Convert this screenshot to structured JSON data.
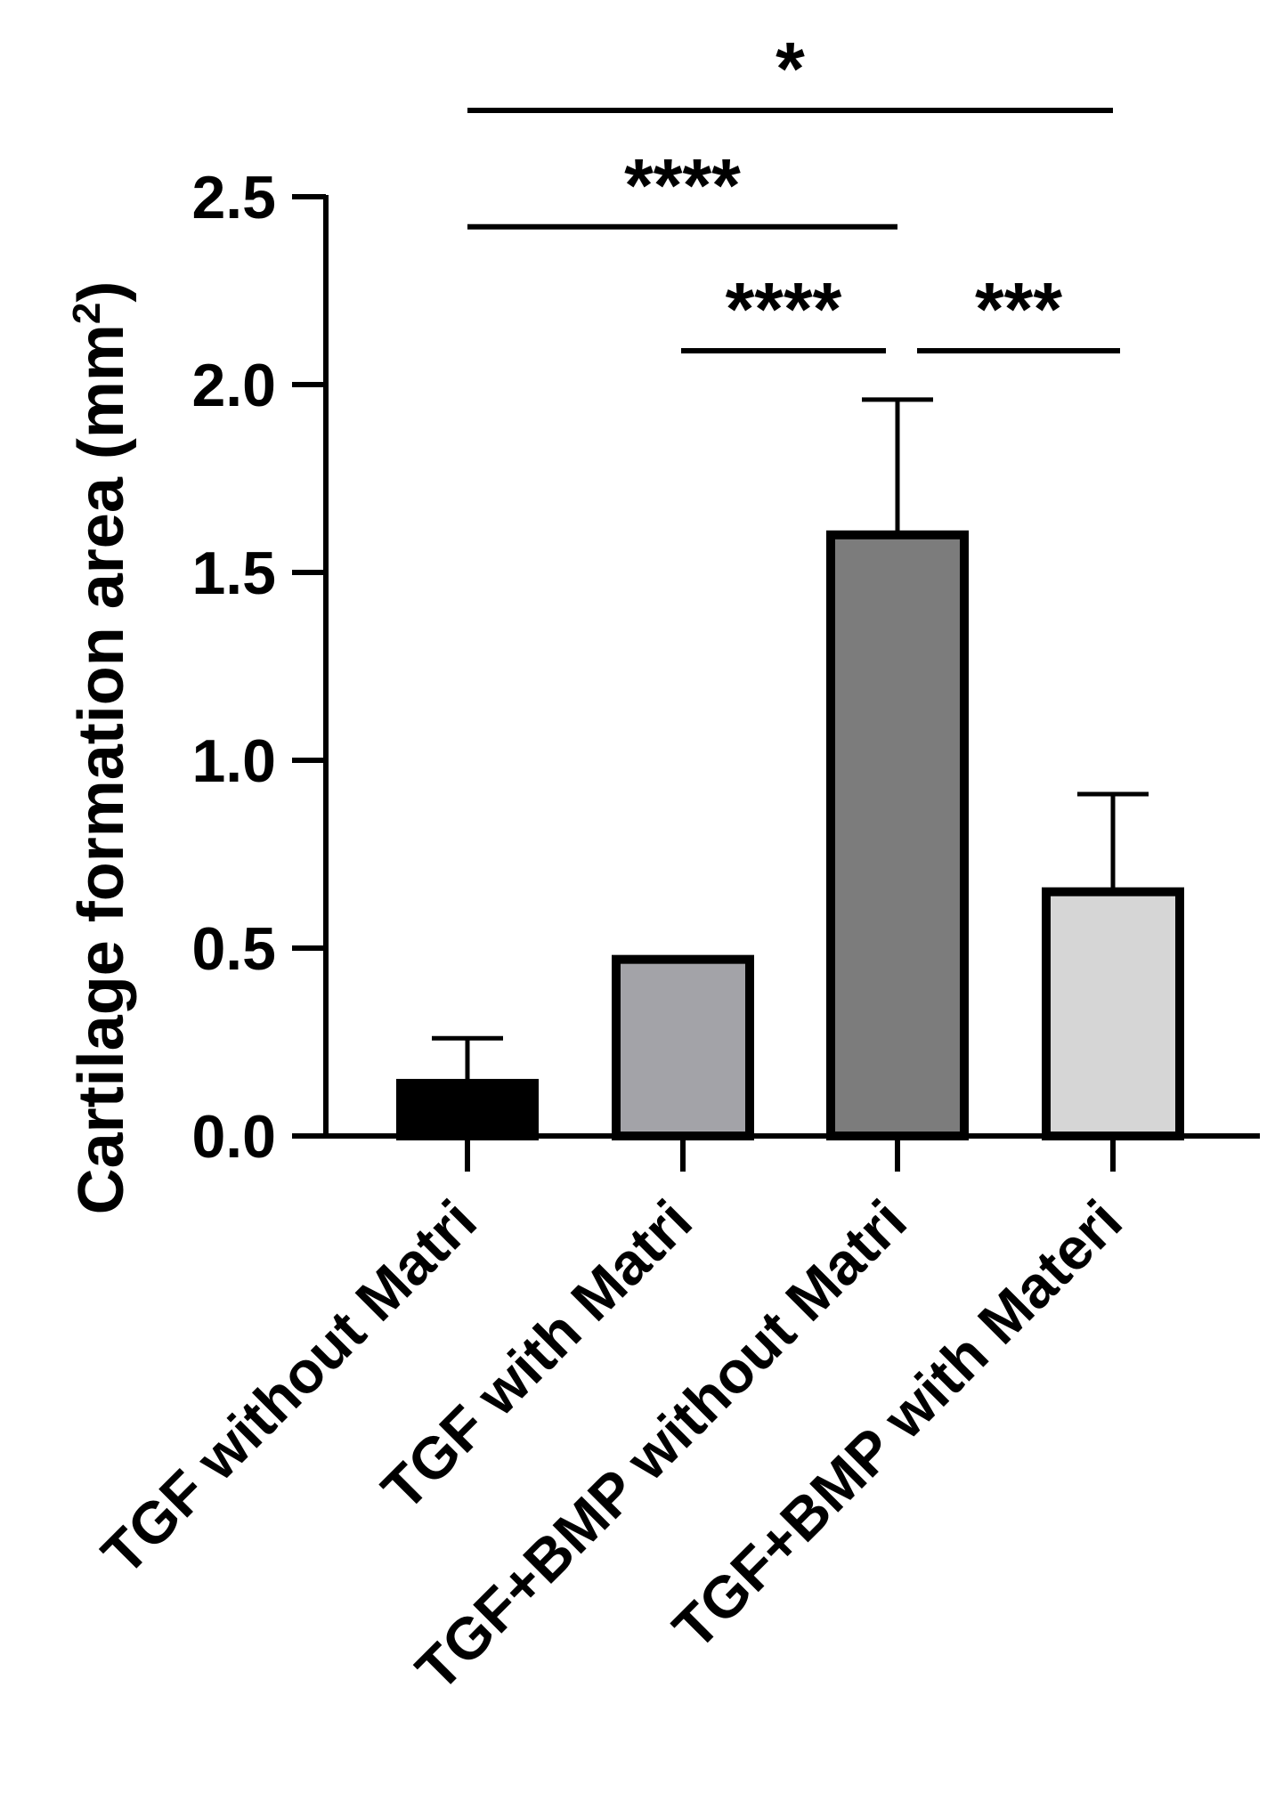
{
  "chart_data": {
    "type": "bar",
    "title": "",
    "ylabel": "Cartilage formation area (mm²)",
    "ylabel_main": "Cartilage formation area (mm",
    "ylabel_sup": "2",
    "ylabel_close": ")",
    "xlabel": "",
    "ylim": [
      0,
      2.5
    ],
    "yticks": [
      0.0,
      0.5,
      1.0,
      1.5,
      2.0,
      2.5
    ],
    "ytick_labels": [
      "0.0",
      "0.5",
      "1.0",
      "1.5",
      "2.0",
      "2.5"
    ],
    "categories": [
      "TGF without Matri",
      "TGF with Matri",
      "TGF+BMP without Matri",
      "TGF+BMP with Materi"
    ],
    "values": [
      0.14,
      0.47,
      1.6,
      0.65
    ],
    "errors": [
      0.12,
      0.0,
      0.36,
      0.26
    ],
    "colors": [
      "#000000",
      "#a3a3a8",
      "#7c7c7c",
      "#d6d6d6"
    ],
    "significance": [
      {
        "from": 0,
        "to": 3,
        "label": "*",
        "y": 2.73
      },
      {
        "from": 0,
        "to": 2,
        "label": "****",
        "y": 2.42
      },
      {
        "from": 1,
        "to": 2,
        "label": "****",
        "y": 2.09
      },
      {
        "from": 2,
        "to": 3,
        "label": "***",
        "y": 2.09
      }
    ]
  }
}
